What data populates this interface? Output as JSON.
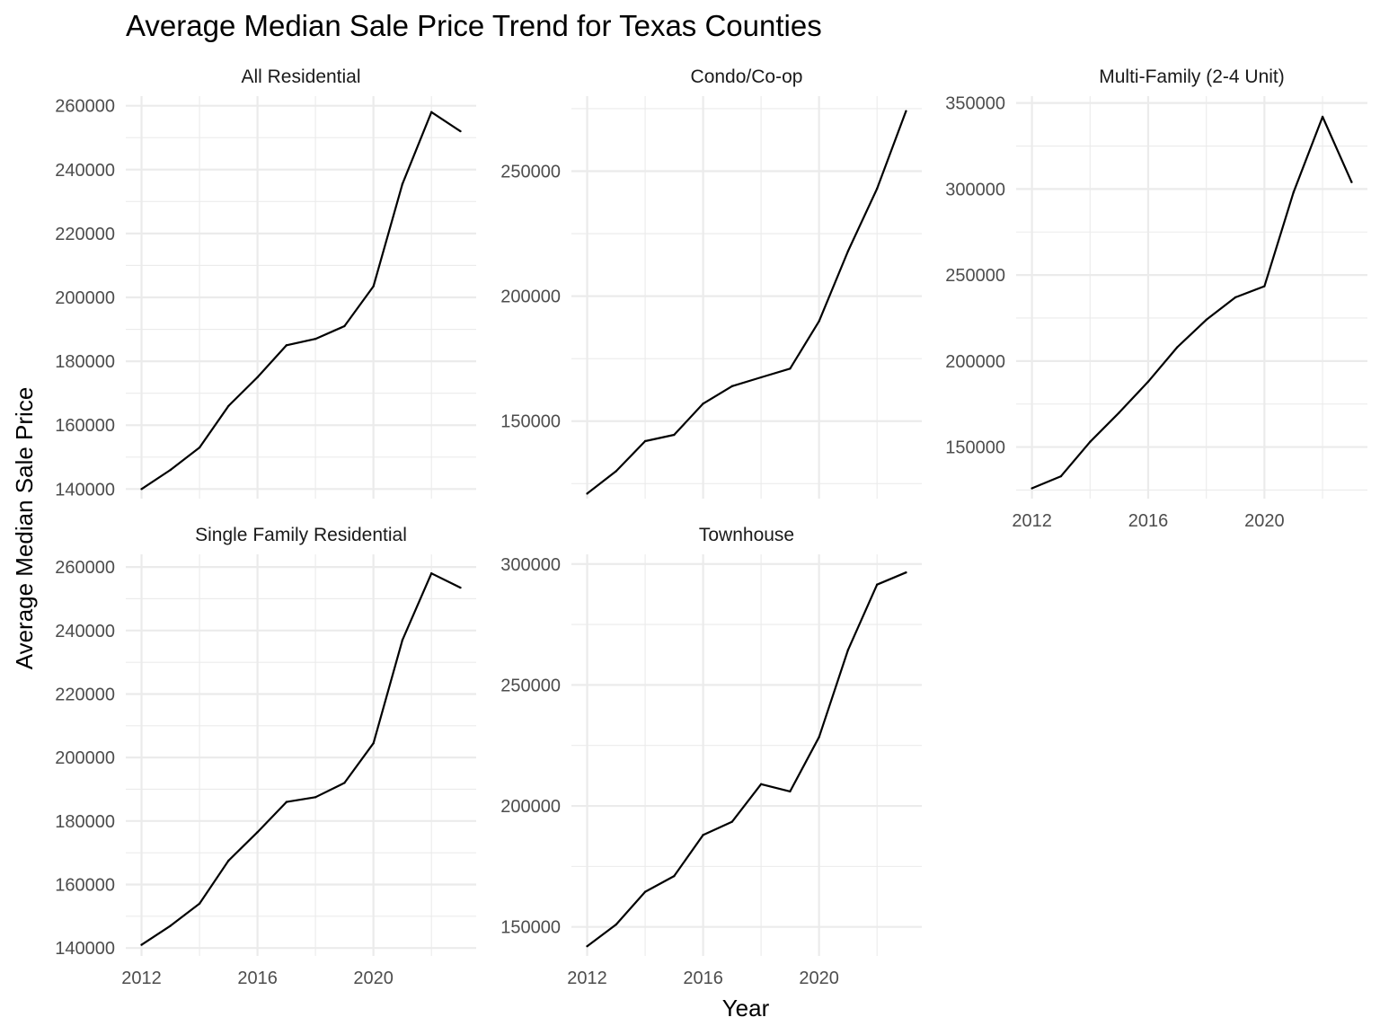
{
  "chart_data": {
    "type": "line",
    "title": "Average Median Sale Price Trend for Texas Counties",
    "xlabel": "Year",
    "ylabel": "Average Median Sale Price",
    "x": [
      2012,
      2013,
      2014,
      2015,
      2016,
      2017,
      2018,
      2019,
      2020,
      2021,
      2022,
      2023
    ],
    "x_ticks": [
      2012,
      2016,
      2020
    ],
    "grid": true,
    "panels": [
      {
        "name": "All Residential",
        "ylim": [
          137000,
          263000
        ],
        "y_ticks": [
          140000,
          160000,
          180000,
          200000,
          220000,
          240000,
          260000
        ],
        "values": [
          140000,
          146000,
          153000,
          166000,
          175000,
          185000,
          187000,
          191000,
          203500,
          235500,
          258000,
          252000
        ]
      },
      {
        "name": "Condo/Co-op",
        "ylim": [
          119000,
          280000
        ],
        "y_ticks": [
          150000,
          200000,
          250000
        ],
        "values": [
          121000,
          130000,
          142000,
          144500,
          157000,
          164000,
          167500,
          171000,
          190000,
          218000,
          243000,
          274000
        ]
      },
      {
        "name": "Multi-Family (2-4 Unit)",
        "ylim": [
          120000,
          354000
        ],
        "y_ticks": [
          150000,
          200000,
          250000,
          300000,
          350000
        ],
        "values": [
          126000,
          133000,
          153000,
          170000,
          188000,
          208000,
          224000,
          237000,
          243500,
          298000,
          342000,
          304000
        ]
      },
      {
        "name": "Single Family Residential",
        "ylim": [
          137500,
          264000
        ],
        "y_ticks": [
          140000,
          160000,
          180000,
          200000,
          220000,
          240000,
          260000
        ],
        "values": [
          141000,
          147000,
          154000,
          167500,
          176500,
          186000,
          187500,
          192000,
          204500,
          237000,
          258000,
          253500
        ]
      },
      {
        "name": "Townhouse",
        "ylim": [
          138000,
          304000
        ],
        "y_ticks": [
          150000,
          200000,
          250000,
          300000
        ],
        "values": [
          142000,
          151000,
          164500,
          171000,
          188000,
          193500,
          209000,
          206000,
          228500,
          264500,
          291500,
          296500
        ]
      }
    ]
  }
}
